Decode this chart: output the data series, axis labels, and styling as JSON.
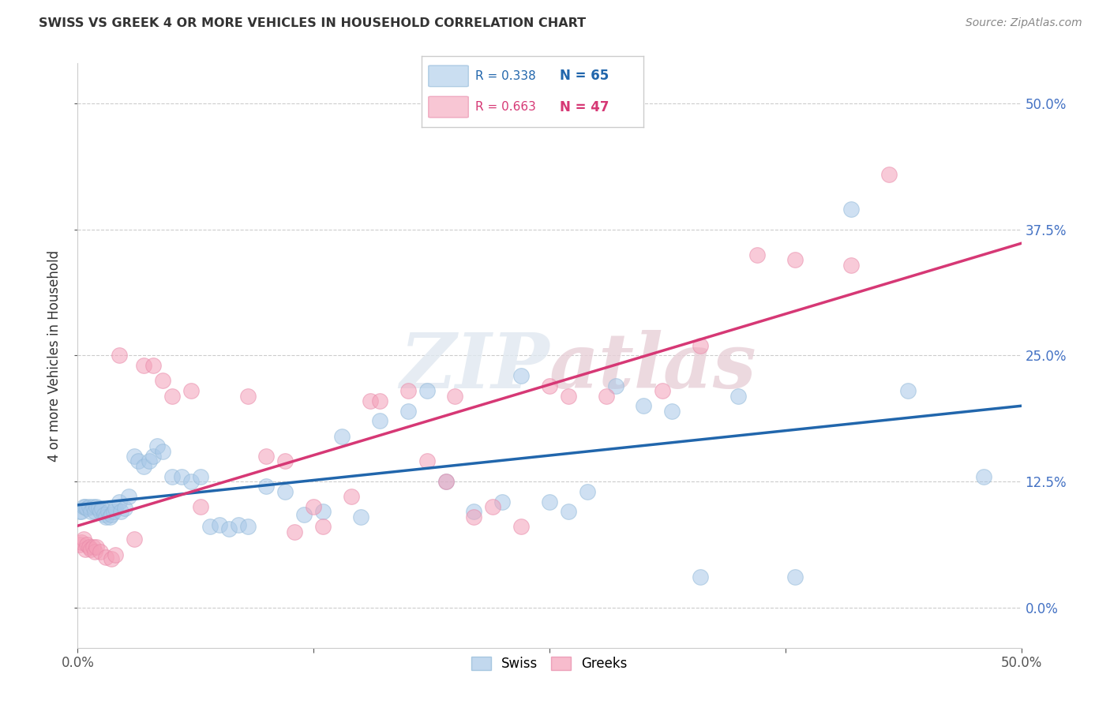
{
  "title": "SWISS VS GREEK 4 OR MORE VEHICLES IN HOUSEHOLD CORRELATION CHART",
  "source": "Source: ZipAtlas.com",
  "ylabel": "4 or more Vehicles in Household",
  "xlim": [
    0.0,
    0.5
  ],
  "ylim": [
    -0.04,
    0.54
  ],
  "swiss_color": "#a8c8e8",
  "greek_color": "#f4a0b8",
  "swiss_line_color": "#2166ac",
  "greek_line_color": "#d63875",
  "swiss_R": 0.338,
  "swiss_N": 65,
  "greek_R": 0.663,
  "greek_N": 47,
  "watermark": "ZIPatlas",
  "swiss_x": [
    0.001,
    0.002,
    0.003,
    0.004,
    0.005,
    0.006,
    0.007,
    0.008,
    0.009,
    0.01,
    0.011,
    0.012,
    0.013,
    0.014,
    0.015,
    0.016,
    0.017,
    0.018,
    0.019,
    0.02,
    0.022,
    0.023,
    0.025,
    0.027,
    0.03,
    0.032,
    0.035,
    0.038,
    0.04,
    0.042,
    0.045,
    0.05,
    0.055,
    0.06,
    0.065,
    0.07,
    0.075,
    0.08,
    0.085,
    0.09,
    0.1,
    0.11,
    0.12,
    0.13,
    0.14,
    0.15,
    0.16,
    0.175,
    0.185,
    0.195,
    0.21,
    0.225,
    0.235,
    0.25,
    0.26,
    0.27,
    0.285,
    0.3,
    0.315,
    0.33,
    0.35,
    0.38,
    0.41,
    0.44,
    0.48
  ],
  "swiss_y": [
    0.095,
    0.095,
    0.1,
    0.1,
    0.098,
    0.1,
    0.095,
    0.1,
    0.095,
    0.1,
    0.098,
    0.095,
    0.098,
    0.092,
    0.09,
    0.095,
    0.09,
    0.092,
    0.095,
    0.098,
    0.105,
    0.095,
    0.098,
    0.11,
    0.15,
    0.145,
    0.14,
    0.145,
    0.15,
    0.16,
    0.155,
    0.13,
    0.13,
    0.125,
    0.13,
    0.08,
    0.082,
    0.078,
    0.082,
    0.08,
    0.12,
    0.115,
    0.092,
    0.095,
    0.17,
    0.09,
    0.185,
    0.195,
    0.215,
    0.125,
    0.095,
    0.105,
    0.23,
    0.105,
    0.095,
    0.115,
    0.22,
    0.2,
    0.195,
    0.03,
    0.21,
    0.03,
    0.395,
    0.215,
    0.13
  ],
  "greek_x": [
    0.001,
    0.002,
    0.003,
    0.004,
    0.005,
    0.006,
    0.007,
    0.008,
    0.009,
    0.01,
    0.012,
    0.015,
    0.018,
    0.02,
    0.022,
    0.03,
    0.035,
    0.04,
    0.045,
    0.05,
    0.06,
    0.065,
    0.09,
    0.1,
    0.11,
    0.115,
    0.125,
    0.13,
    0.145,
    0.155,
    0.16,
    0.175,
    0.185,
    0.195,
    0.2,
    0.21,
    0.22,
    0.235,
    0.25,
    0.26,
    0.28,
    0.31,
    0.33,
    0.36,
    0.38,
    0.41,
    0.43
  ],
  "greek_y": [
    0.062,
    0.065,
    0.068,
    0.058,
    0.062,
    0.06,
    0.058,
    0.06,
    0.055,
    0.06,
    0.055,
    0.05,
    0.048,
    0.052,
    0.25,
    0.068,
    0.24,
    0.24,
    0.225,
    0.21,
    0.215,
    0.1,
    0.21,
    0.15,
    0.145,
    0.075,
    0.1,
    0.08,
    0.11,
    0.205,
    0.205,
    0.215,
    0.145,
    0.125,
    0.21,
    0.09,
    0.1,
    0.08,
    0.22,
    0.21,
    0.21,
    0.215,
    0.26,
    0.35,
    0.345,
    0.34,
    0.43
  ]
}
